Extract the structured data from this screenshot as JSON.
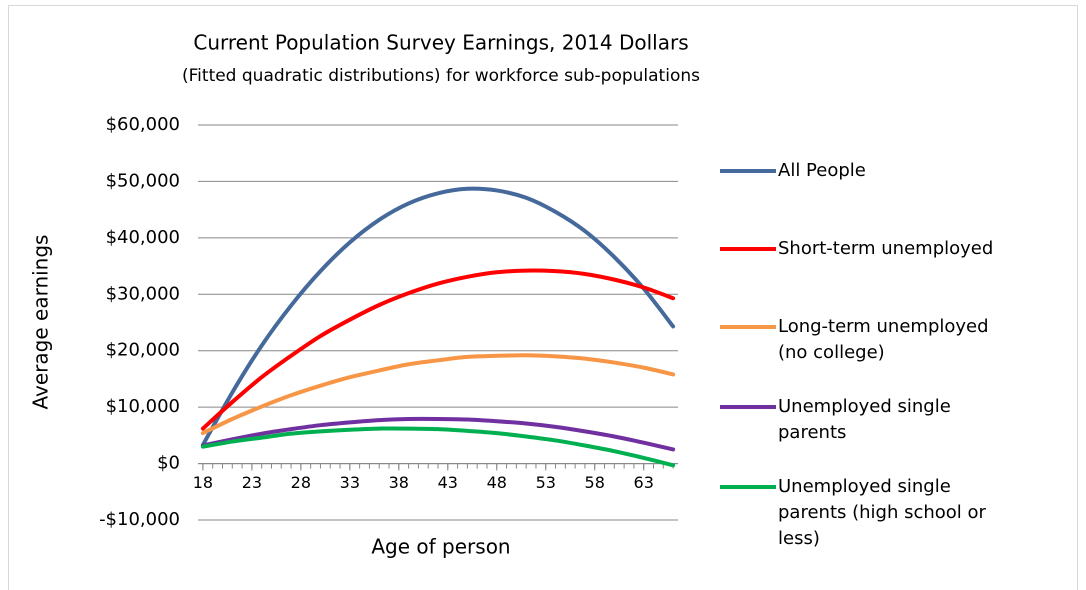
{
  "chart_data": {
    "type": "line",
    "title": "Current Population Survey Earnings, 2014 Dollars",
    "subtitle": "(Fitted quadratic distributions) for workforce sub-populations",
    "x_label": "Age of person",
    "y_label": "Average earnings",
    "x": [
      18,
      21,
      24,
      27,
      30,
      33,
      36,
      39,
      42,
      45,
      48,
      51,
      54,
      57,
      60,
      63,
      66
    ],
    "series": [
      {
        "name": "All People",
        "color": "#44699a",
        "values": [
          3300,
          12600,
          20900,
          28000,
          34100,
          39200,
          43200,
          46100,
          47900,
          48700,
          48400,
          47100,
          44600,
          41200,
          36600,
          31000,
          24300
        ]
      },
      {
        "name": "Short-term unemployed",
        "color": "#ff0000",
        "values": [
          6200,
          10900,
          15300,
          19100,
          22600,
          25500,
          28100,
          30200,
          31900,
          33100,
          33900,
          34200,
          34100,
          33600,
          32600,
          31200,
          29300
        ]
      },
      {
        "name": "Long-term unemployed (no college)",
        "color": "#f79646",
        "values": [
          5400,
          7900,
          10100,
          12100,
          13800,
          15300,
          16500,
          17600,
          18300,
          18900,
          19100,
          19200,
          19000,
          18600,
          17900,
          17000,
          15800
        ]
      },
      {
        "name": "Unemployed single parents",
        "color": "#7030a0",
        "values": [
          3200,
          4300,
          5300,
          6100,
          6800,
          7300,
          7700,
          7900,
          7900,
          7800,
          7500,
          7100,
          6500,
          5700,
          4800,
          3700,
          2500
        ]
      },
      {
        "name": "Unemployed single parents (high school or less)",
        "color": "#00b050",
        "values": [
          3000,
          3900,
          4600,
          5300,
          5700,
          6000,
          6200,
          6200,
          6100,
          5800,
          5400,
          4800,
          4100,
          3200,
          2200,
          1000,
          -300
        ]
      }
    ],
    "xlim": [
      17.5,
      66.5
    ],
    "xticks": [
      18,
      23,
      28,
      33,
      38,
      43,
      48,
      53,
      58,
      63
    ],
    "ylim": [
      -10000,
      60000
    ],
    "yticks": [
      {
        "value": -10000,
        "label": "-$10,000"
      },
      {
        "value": 0,
        "label": "$0"
      },
      {
        "value": 10000,
        "label": "$10,000"
      },
      {
        "value": 20000,
        "label": "$20,000"
      },
      {
        "value": 30000,
        "label": "$30,000"
      },
      {
        "value": 40000,
        "label": "$40,000"
      },
      {
        "value": 50000,
        "label": "$50,000"
      },
      {
        "value": 60000,
        "label": "$60,000"
      }
    ],
    "grid": true,
    "legend": "right"
  }
}
